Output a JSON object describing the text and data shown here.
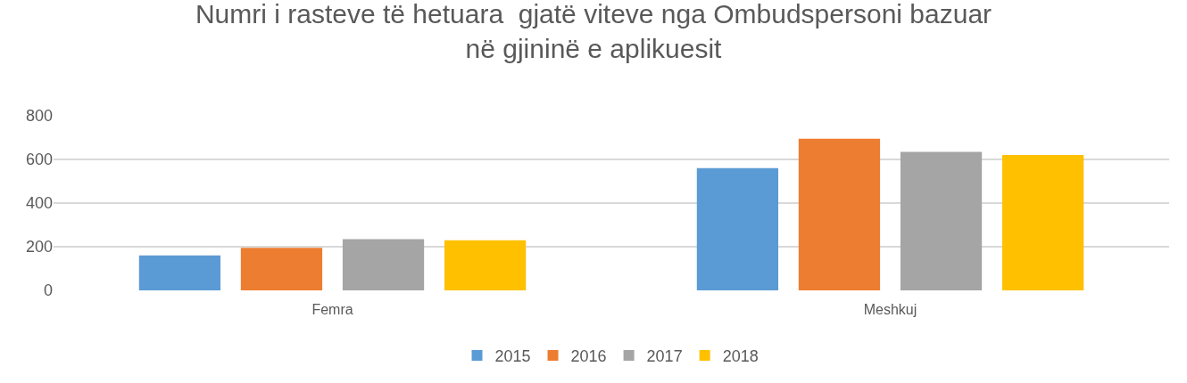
{
  "chart_data": {
    "type": "bar",
    "title": "Numri i rasteve të hetuara  gjatë viteve nga Ombudspersoni bazuar\nnë gjininë e aplikuesit",
    "categories": [
      "Femra",
      "Meshkuj"
    ],
    "series": [
      {
        "name": "2015",
        "color": "#5b9bd5",
        "values": [
          160,
          560
        ]
      },
      {
        "name": "2016",
        "color": "#ed7d31",
        "values": [
          195,
          695
        ]
      },
      {
        "name": "2017",
        "color": "#a5a5a5",
        "values": [
          235,
          635
        ]
      },
      {
        "name": "2018",
        "color": "#ffc000",
        "values": [
          230,
          620
        ]
      }
    ],
    "ylim": [
      0,
      800
    ],
    "yticks": [
      0,
      200,
      400,
      600,
      800
    ],
    "grid": "y",
    "legend": "bottom"
  }
}
